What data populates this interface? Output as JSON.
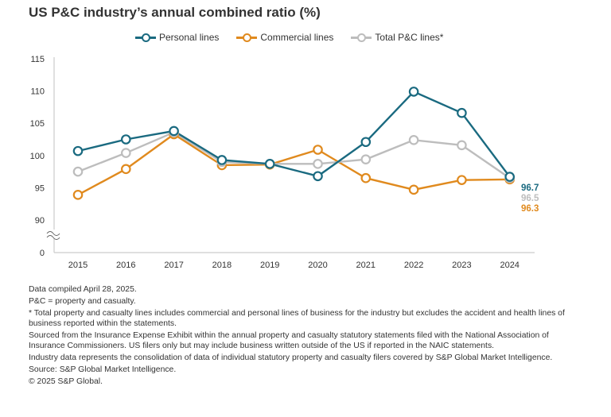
{
  "chart_data": {
    "type": "line",
    "title": "US P&C industry’s annual combined ratio (%)",
    "x": [
      "2015",
      "2016",
      "2017",
      "2018",
      "2019",
      "2020",
      "2021",
      "2022",
      "2023",
      "2024"
    ],
    "yticks": [
      "115",
      "110",
      "105",
      "100",
      "95",
      "90",
      "0"
    ],
    "ylim": [
      0,
      115
    ],
    "axis_break": "between 0 and 90",
    "grid": false,
    "legend_position": "top",
    "series": [
      {
        "name": "Personal lines",
        "color": "#1a6a80",
        "values": [
          100.7,
          102.5,
          103.8,
          99.3,
          98.7,
          96.8,
          102.1,
          109.9,
          106.6,
          96.7
        ],
        "end_label": "96.7"
      },
      {
        "name": "Commercial lines",
        "color": "#e08a1e",
        "values": [
          93.9,
          97.9,
          103.3,
          98.5,
          98.6,
          100.9,
          96.5,
          94.7,
          96.2,
          96.3
        ],
        "end_label": "96.3"
      },
      {
        "name": "Total P&C lines*",
        "color": "#bdbdbd",
        "values": [
          97.5,
          100.4,
          103.6,
          99.0,
          98.7,
          98.7,
          99.4,
          102.4,
          101.6,
          96.5
        ],
        "end_label": "96.5"
      }
    ]
  },
  "notes": [
    "Data compiled April 28, 2025.",
    "P&C = property and casualty.",
    "* Total property and casualty lines includes commercial and personal lines of business for the industry but excludes the accident and health lines of business reported within the statements.",
    "Sourced from the Insurance Expense Exhibit within the annual property and casualty statutory statements filed with the National Association of Insurance Commissioners. US filers only but may include business written outside of the US if reported in the NAIC statements.",
    "Industry data represents the consolidation of data of individual statutory property and casualty filers covered by S&P Global Market Intelligence.",
    "Source: S&P Global Market Intelligence.",
    "© 2025 S&P Global."
  ]
}
